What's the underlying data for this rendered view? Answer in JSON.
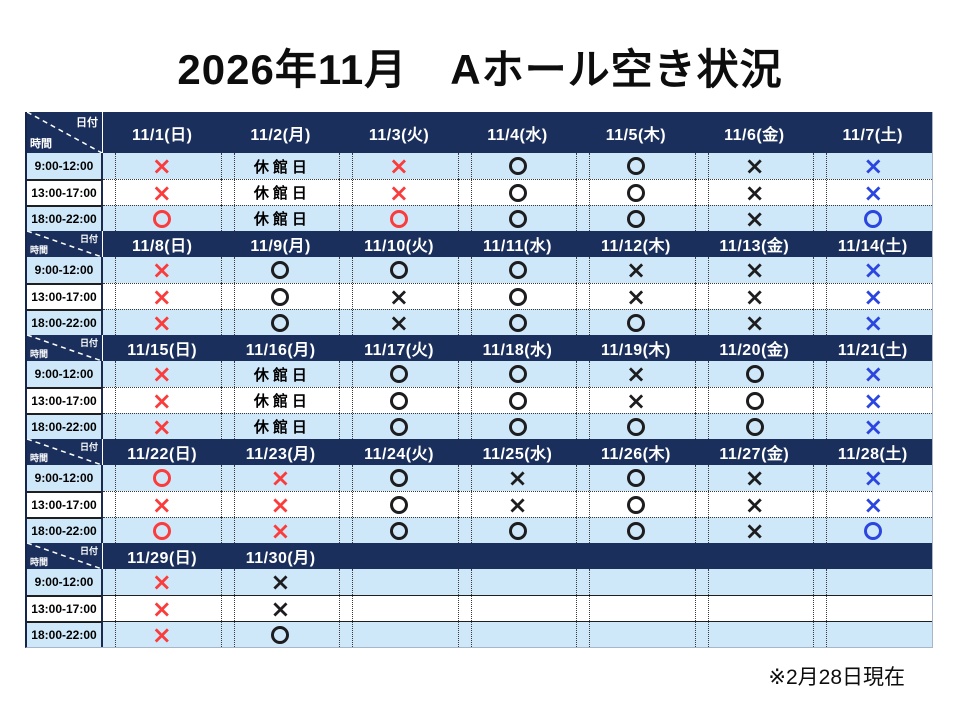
{
  "colors": {
    "red": "#fa3c3c",
    "blue": "#2b46e0",
    "black": "#1d1d1f",
    "header_navy": "#1a2f5b",
    "row_blue": "#cfe8f9",
    "row_white": "#ffffff"
  },
  "chart_data": {
    "type": "table",
    "title": "2026年11月　Aホール空き状況",
    "note": "※2月28日現在",
    "corner": {
      "top_right": "日付",
      "bottom_left": "時間"
    },
    "time_slots": [
      "9:00-12:00",
      "13:00-17:00",
      "18:00-22:00"
    ],
    "symbols": {
      "available": "○",
      "unavailable": "×",
      "closed": "休館日"
    },
    "weeks": [
      {
        "dates": [
          "11/1(日)",
          "11/2(月)",
          "11/3(火)",
          "11/4(水)",
          "11/5(木)",
          "11/6(金)",
          "11/7(土)"
        ],
        "rows": [
          [
            {
              "v": "×",
              "c": "red"
            },
            {
              "v": "休館日",
              "c": "black"
            },
            {
              "v": "×",
              "c": "red"
            },
            {
              "v": "○",
              "c": "black"
            },
            {
              "v": "○",
              "c": "black"
            },
            {
              "v": "×",
              "c": "black"
            },
            {
              "v": "×",
              "c": "blue"
            }
          ],
          [
            {
              "v": "×",
              "c": "red"
            },
            {
              "v": "休館日",
              "c": "black"
            },
            {
              "v": "×",
              "c": "red"
            },
            {
              "v": "○",
              "c": "black"
            },
            {
              "v": "○",
              "c": "black"
            },
            {
              "v": "×",
              "c": "black"
            },
            {
              "v": "×",
              "c": "blue"
            }
          ],
          [
            {
              "v": "○",
              "c": "red"
            },
            {
              "v": "休館日",
              "c": "black"
            },
            {
              "v": "○",
              "c": "red"
            },
            {
              "v": "○",
              "c": "black"
            },
            {
              "v": "○",
              "c": "black"
            },
            {
              "v": "×",
              "c": "black"
            },
            {
              "v": "○",
              "c": "blue"
            }
          ]
        ]
      },
      {
        "dates": [
          "11/8(日)",
          "11/9(月)",
          "11/10(火)",
          "11/11(水)",
          "11/12(木)",
          "11/13(金)",
          "11/14(土)"
        ],
        "rows": [
          [
            {
              "v": "×",
              "c": "red"
            },
            {
              "v": "○",
              "c": "black"
            },
            {
              "v": "○",
              "c": "black"
            },
            {
              "v": "○",
              "c": "black"
            },
            {
              "v": "×",
              "c": "black"
            },
            {
              "v": "×",
              "c": "black"
            },
            {
              "v": "×",
              "c": "blue"
            }
          ],
          [
            {
              "v": "×",
              "c": "red"
            },
            {
              "v": "○",
              "c": "black"
            },
            {
              "v": "×",
              "c": "black"
            },
            {
              "v": "○",
              "c": "black"
            },
            {
              "v": "×",
              "c": "black"
            },
            {
              "v": "×",
              "c": "black"
            },
            {
              "v": "×",
              "c": "blue"
            }
          ],
          [
            {
              "v": "×",
              "c": "red"
            },
            {
              "v": "○",
              "c": "black"
            },
            {
              "v": "×",
              "c": "black"
            },
            {
              "v": "○",
              "c": "black"
            },
            {
              "v": "○",
              "c": "black"
            },
            {
              "v": "×",
              "c": "black"
            },
            {
              "v": "×",
              "c": "blue"
            }
          ]
        ]
      },
      {
        "dates": [
          "11/15(日)",
          "11/16(月)",
          "11/17(火)",
          "11/18(水)",
          "11/19(木)",
          "11/20(金)",
          "11/21(土)"
        ],
        "rows": [
          [
            {
              "v": "×",
              "c": "red"
            },
            {
              "v": "休館日",
              "c": "black"
            },
            {
              "v": "○",
              "c": "black"
            },
            {
              "v": "○",
              "c": "black"
            },
            {
              "v": "×",
              "c": "black"
            },
            {
              "v": "○",
              "c": "black"
            },
            {
              "v": "×",
              "c": "blue"
            }
          ],
          [
            {
              "v": "×",
              "c": "red"
            },
            {
              "v": "休館日",
              "c": "black"
            },
            {
              "v": "○",
              "c": "black"
            },
            {
              "v": "○",
              "c": "black"
            },
            {
              "v": "×",
              "c": "black"
            },
            {
              "v": "○",
              "c": "black"
            },
            {
              "v": "×",
              "c": "blue"
            }
          ],
          [
            {
              "v": "×",
              "c": "red"
            },
            {
              "v": "休館日",
              "c": "black"
            },
            {
              "v": "○",
              "c": "black"
            },
            {
              "v": "○",
              "c": "black"
            },
            {
              "v": "○",
              "c": "black"
            },
            {
              "v": "○",
              "c": "black"
            },
            {
              "v": "×",
              "c": "blue"
            }
          ]
        ]
      },
      {
        "dates": [
          "11/22(日)",
          "11/23(月)",
          "11/24(火)",
          "11/25(水)",
          "11/26(木)",
          "11/27(金)",
          "11/28(土)"
        ],
        "rows": [
          [
            {
              "v": "○",
              "c": "red"
            },
            {
              "v": "×",
              "c": "red"
            },
            {
              "v": "○",
              "c": "black"
            },
            {
              "v": "×",
              "c": "black"
            },
            {
              "v": "○",
              "c": "black"
            },
            {
              "v": "×",
              "c": "black"
            },
            {
              "v": "×",
              "c": "blue"
            }
          ],
          [
            {
              "v": "×",
              "c": "red"
            },
            {
              "v": "×",
              "c": "red"
            },
            {
              "v": "○",
              "c": "black"
            },
            {
              "v": "×",
              "c": "black"
            },
            {
              "v": "○",
              "c": "black"
            },
            {
              "v": "×",
              "c": "black"
            },
            {
              "v": "×",
              "c": "blue"
            }
          ],
          [
            {
              "v": "○",
              "c": "red"
            },
            {
              "v": "×",
              "c": "red"
            },
            {
              "v": "○",
              "c": "black"
            },
            {
              "v": "○",
              "c": "black"
            },
            {
              "v": "○",
              "c": "black"
            },
            {
              "v": "×",
              "c": "black"
            },
            {
              "v": "○",
              "c": "blue"
            }
          ]
        ]
      },
      {
        "dates": [
          "11/29(日)",
          "11/30(月)",
          "",
          "",
          "",
          "",
          ""
        ],
        "rows": [
          [
            {
              "v": "×",
              "c": "red"
            },
            {
              "v": "×",
              "c": "black"
            },
            {
              "v": "",
              "c": "black"
            },
            {
              "v": "",
              "c": "black"
            },
            {
              "v": "",
              "c": "black"
            },
            {
              "v": "",
              "c": "black"
            },
            {
              "v": "",
              "c": "black"
            }
          ],
          [
            {
              "v": "×",
              "c": "red"
            },
            {
              "v": "×",
              "c": "black"
            },
            {
              "v": "",
              "c": "black"
            },
            {
              "v": "",
              "c": "black"
            },
            {
              "v": "",
              "c": "black"
            },
            {
              "v": "",
              "c": "black"
            },
            {
              "v": "",
              "c": "black"
            }
          ],
          [
            {
              "v": "×",
              "c": "red"
            },
            {
              "v": "○",
              "c": "black"
            },
            {
              "v": "",
              "c": "black"
            },
            {
              "v": "",
              "c": "black"
            },
            {
              "v": "",
              "c": "black"
            },
            {
              "v": "",
              "c": "black"
            },
            {
              "v": "",
              "c": "black"
            }
          ]
        ]
      }
    ]
  }
}
